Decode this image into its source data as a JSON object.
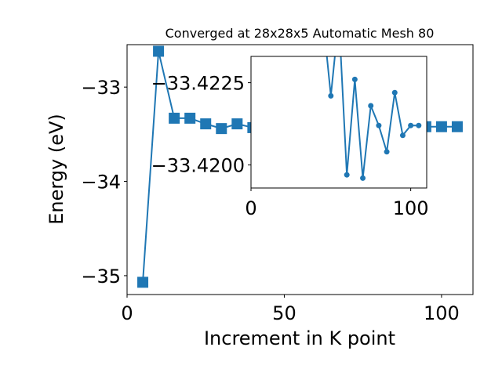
{
  "chart_data": [
    {
      "type": "line",
      "role": "main",
      "title": "Converged at 28x28x5 Automatic Mesh 80",
      "xlabel": "Increment in K point",
      "ylabel": "Energy (eV)",
      "xlim": [
        0,
        110
      ],
      "ylim": [
        -35.2,
        -32.55
      ],
      "xticks": [
        0,
        50,
        100
      ],
      "yticks": [
        -35,
        -34,
        -33
      ],
      "xtick_labels": [
        "0",
        "50",
        "100"
      ],
      "ytick_labels": [
        "−35",
        "−34",
        "−33"
      ],
      "grid": false,
      "marker": "square",
      "color": "#1f77b4",
      "x": [
        5,
        10,
        15,
        20,
        25,
        30,
        35,
        40,
        45,
        50,
        55,
        60,
        65,
        70,
        75,
        80,
        85,
        90,
        95,
        100,
        105
      ],
      "y": [
        -35.07,
        -32.62,
        -33.33,
        -33.33,
        -33.39,
        -33.44,
        -33.39,
        -33.43,
        -33.42,
        -33.42,
        -33.42,
        -33.42,
        -33.42,
        -33.42,
        -33.42,
        -33.42,
        -33.42,
        -33.42,
        -33.42,
        -33.42,
        -33.42
      ]
    },
    {
      "type": "line",
      "role": "inset",
      "title": "",
      "xlabel": "",
      "ylabel": "",
      "xlim": [
        0,
        110
      ],
      "ylim": [
        -33.4193,
        -33.4233
      ],
      "xticks": [
        0,
        100
      ],
      "yticks": [
        -33.4225,
        -33.42
      ],
      "xtick_labels": [
        "0",
        "100"
      ],
      "ytick_labels": [
        "−33.4225",
        "−33.4200"
      ],
      "grid": false,
      "marker": "circle",
      "color": "#1f77b4",
      "x": [
        45,
        50,
        55,
        60,
        65,
        70,
        75,
        80,
        85,
        90,
        95,
        100,
        105
      ],
      "y": [
        -33.4245,
        -33.4221,
        -33.4245,
        -33.4197,
        -33.4226,
        -33.4196,
        -33.4218,
        -33.4212,
        -33.4204,
        -33.4222,
        -33.4209,
        -33.4212,
        -33.4212
      ]
    }
  ]
}
